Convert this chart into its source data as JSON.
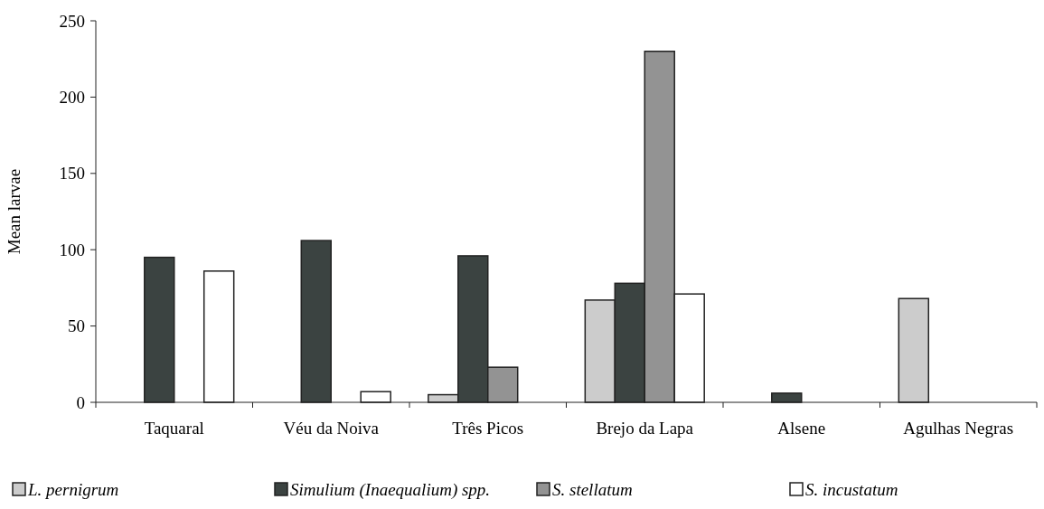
{
  "chart_data": {
    "type": "bar",
    "ylabel": "Mean larvae",
    "categories": [
      "Taquaral",
      "Véu da Noiva",
      "Três Picos",
      "Brejo da Lapa",
      "Alsene",
      "Agulhas Negras"
    ],
    "series": [
      {
        "name": "L. pernigrum",
        "color": "#cccccc",
        "values": [
          0,
          0,
          5,
          67,
          0,
          68
        ]
      },
      {
        "name": "Simulium (Inaequalium) spp.",
        "color": "#3b4341",
        "values": [
          95,
          106,
          96,
          78,
          6,
          0
        ]
      },
      {
        "name": "S. stellatum",
        "color": "#939393",
        "values": [
          0,
          0,
          23,
          230,
          0,
          0
        ]
      },
      {
        "name": "S. incustatum",
        "color": "#ffffff",
        "values": [
          86,
          7,
          0,
          71,
          0,
          0
        ]
      }
    ],
    "ylim": [
      0,
      250
    ],
    "yticks": [
      0,
      50,
      100,
      150,
      200,
      250
    ],
    "grid": false,
    "legend": "bottom"
  }
}
